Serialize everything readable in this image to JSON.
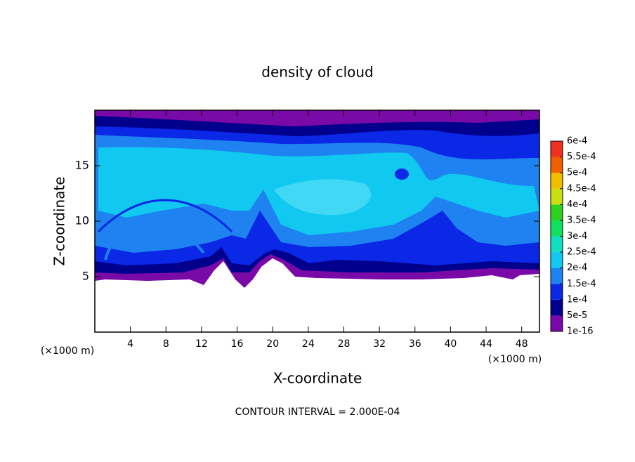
{
  "chart_data": {
    "type": "contour",
    "title": "density of cloud",
    "x_label": "X-coordinate",
    "y_label": "Z-coordinate",
    "x_unit": "(×1000 m)",
    "y_unit": "(×1000 m)",
    "footnote": "CONTOUR INTERVAL = 2.000E-04",
    "xlim": [
      0,
      50
    ],
    "xticks": [
      4,
      8,
      12,
      16,
      20,
      24,
      28,
      32,
      36,
      40,
      44,
      48
    ],
    "ylim": [
      0,
      20
    ],
    "yticks": [
      5,
      10,
      15
    ],
    "colorbar": {
      "ticks": [
        {
          "value": 1e-16,
          "label": "1e-16"
        },
        {
          "value": 5e-05,
          "label": "5e-5"
        },
        {
          "value": 0.0001,
          "label": "1e-4"
        },
        {
          "value": 0.00015,
          "label": "1.5e-4"
        },
        {
          "value": 0.0002,
          "label": "2e-4"
        },
        {
          "value": 0.00025,
          "label": "2.5e-4"
        },
        {
          "value": 0.0003,
          "label": "3e-4"
        },
        {
          "value": 0.00035,
          "label": "3.5e-4"
        },
        {
          "value": 0.0004,
          "label": "4e-4"
        },
        {
          "value": 0.00045,
          "label": "4.5e-4"
        },
        {
          "value": 0.0005,
          "label": "5e-4"
        },
        {
          "value": 0.00055,
          "label": "5.5e-4"
        },
        {
          "value": 0.0006,
          "label": "6e-4"
        }
      ],
      "colors": [
        "#7a0aa8",
        "#00008c",
        "#0a28e6",
        "#1e82f0",
        "#10c8f0",
        "#10e0c0",
        "#10e060",
        "#30d020",
        "#c8e010",
        "#f0c000",
        "#f06000",
        "#f03020"
      ]
    }
  }
}
